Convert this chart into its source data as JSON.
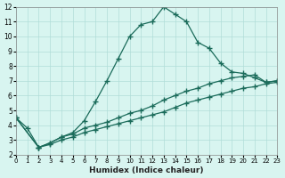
{
  "xlabel": "Humidex (Indice chaleur)",
  "bg_color": "#d8f5f0",
  "grid_color": "#b0ddd8",
  "line_color": "#1a6b5a",
  "xlim": [
    0,
    23
  ],
  "ylim": [
    2,
    12
  ],
  "xticks": [
    0,
    1,
    2,
    3,
    4,
    5,
    6,
    7,
    8,
    9,
    10,
    11,
    12,
    13,
    14,
    15,
    16,
    17,
    18,
    19,
    20,
    21,
    22,
    23
  ],
  "yticks": [
    2,
    3,
    4,
    5,
    6,
    7,
    8,
    9,
    10,
    11,
    12
  ],
  "curve1_x": [
    0,
    1,
    2,
    3,
    4,
    5,
    6,
    7,
    8,
    9,
    10,
    11,
    12,
    13,
    14,
    15,
    16,
    17,
    18,
    19,
    20,
    21,
    22,
    23
  ],
  "curve1_y": [
    4.5,
    3.8,
    2.5,
    2.8,
    3.2,
    3.5,
    4.3,
    5.6,
    7.0,
    8.5,
    10.0,
    10.8,
    11.0,
    12.0,
    11.5,
    11.0,
    9.6,
    9.2,
    8.2,
    7.6,
    7.5,
    7.2,
    6.9,
    7.0
  ],
  "curve2_x": [
    0,
    2,
    3,
    4,
    5,
    6,
    7,
    8,
    9,
    10,
    11,
    12,
    13,
    14,
    15,
    16,
    17,
    18,
    19,
    20,
    21,
    22,
    23
  ],
  "curve2_y": [
    4.5,
    2.5,
    2.8,
    3.2,
    3.4,
    3.8,
    4.0,
    4.2,
    4.5,
    4.8,
    5.0,
    5.3,
    5.7,
    6.0,
    6.3,
    6.5,
    6.8,
    7.0,
    7.2,
    7.3,
    7.4,
    6.9,
    7.0
  ],
  "curve3_x": [
    0,
    2,
    3,
    4,
    5,
    6,
    7,
    8,
    9,
    10,
    11,
    12,
    13,
    14,
    15,
    16,
    17,
    18,
    19,
    20,
    21,
    22,
    23
  ],
  "curve3_y": [
    4.5,
    2.5,
    2.7,
    3.0,
    3.2,
    3.5,
    3.7,
    3.9,
    4.1,
    4.3,
    4.5,
    4.7,
    4.9,
    5.2,
    5.5,
    5.7,
    5.9,
    6.1,
    6.3,
    6.5,
    6.6,
    6.8,
    6.9
  ]
}
